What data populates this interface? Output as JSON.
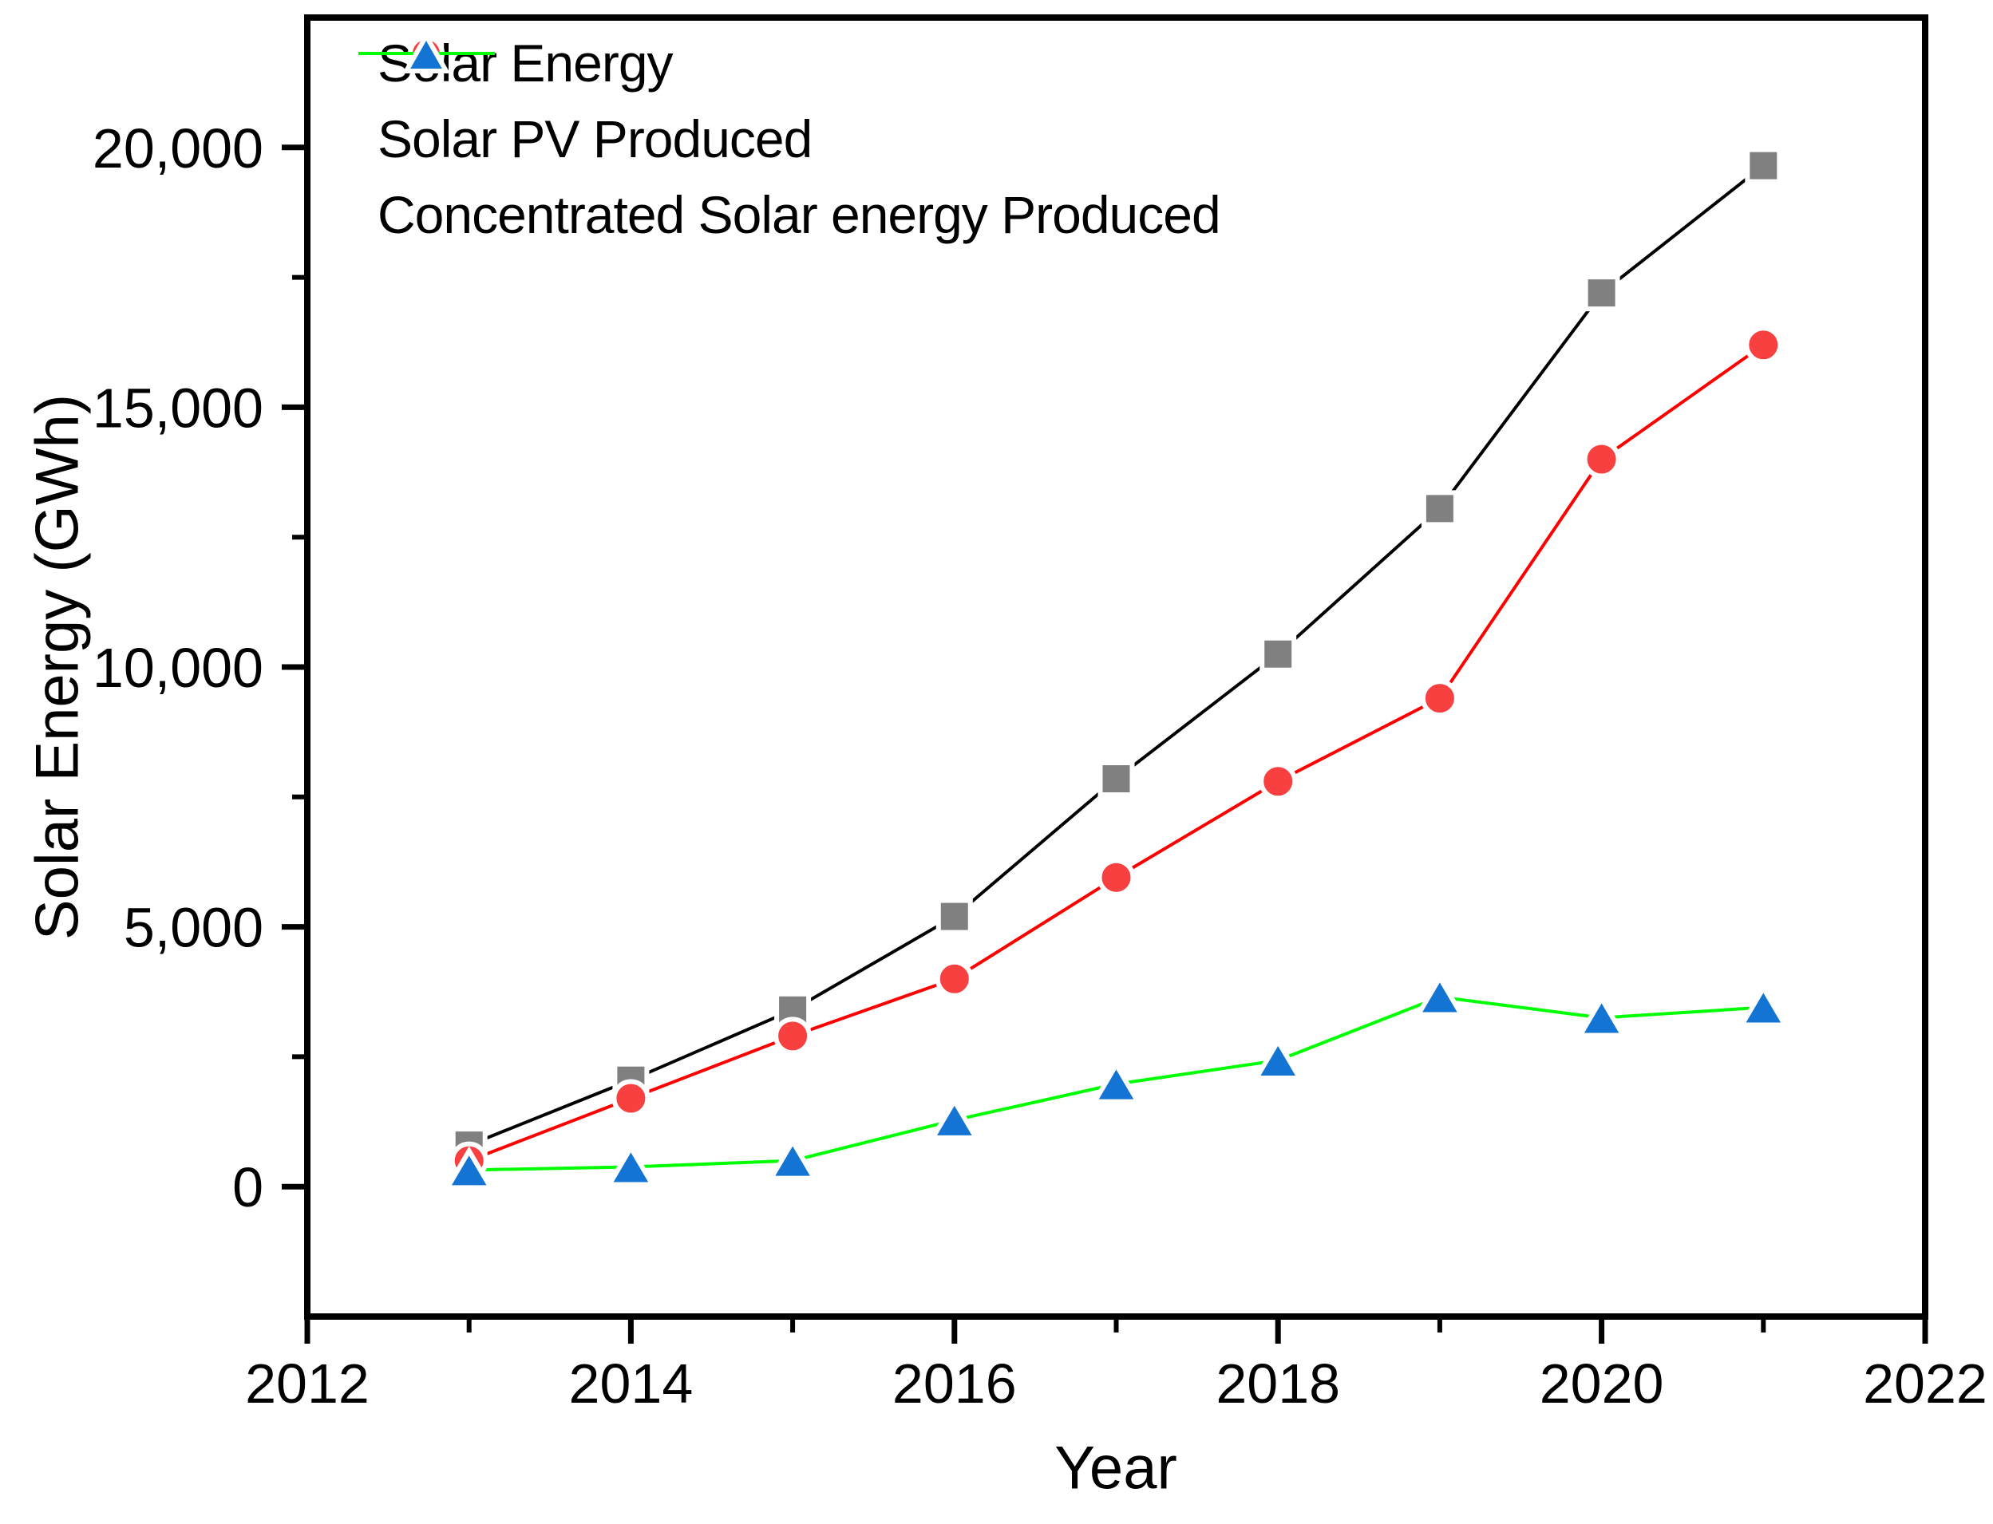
{
  "figure": {
    "background": "#ffffff",
    "axis_color": "#000000"
  },
  "chart_data": {
    "type": "line",
    "title": "",
    "xlabel": "Year",
    "ylabel": "Solar Energy (GWh)",
    "x": [
      2013,
      2014,
      2015,
      2016,
      2017,
      2018,
      2019,
      2020,
      2021
    ],
    "series": [
      {
        "name": "Solar Energy",
        "marker": "square",
        "marker_color": "#808080",
        "line_color": "#000000",
        "values": [
          800,
          2050,
          3400,
          5200,
          7850,
          10250,
          13050,
          17200,
          19650
        ]
      },
      {
        "name": "Solar PV Produced",
        "marker": "circle",
        "marker_color": "#F84040",
        "line_color": "#FF0000",
        "values": [
          500,
          1700,
          2900,
          4000,
          5950,
          7800,
          9400,
          14000,
          16200
        ]
      },
      {
        "name": "Concentrated Solar energy Produced",
        "marker": "triangle",
        "marker_color": "#1474D4",
        "line_color": "#00FF00",
        "values": [
          320,
          380,
          500,
          1280,
          1975,
          2430,
          3650,
          3250,
          3450
        ]
      }
    ],
    "xlim": [
      2012,
      2022
    ],
    "ylim": [
      -2500,
      22500
    ],
    "x_ticks_major": [
      2012,
      2014,
      2016,
      2018,
      2020,
      2022
    ],
    "x_tick_labels": [
      "2012",
      "2014",
      "2016",
      "2018",
      "2020",
      "2022"
    ],
    "x_ticks_minor": [
      2013,
      2015,
      2017,
      2019,
      2021
    ],
    "y_ticks_major": [
      0,
      5000,
      10000,
      15000,
      20000
    ],
    "y_tick_labels": [
      "0",
      "5,000",
      "10,000",
      "15,000",
      "20,000"
    ],
    "y_ticks_minor": [
      2500,
      7500,
      12500,
      17500
    ],
    "grid": false,
    "legend_position": "top-left"
  }
}
